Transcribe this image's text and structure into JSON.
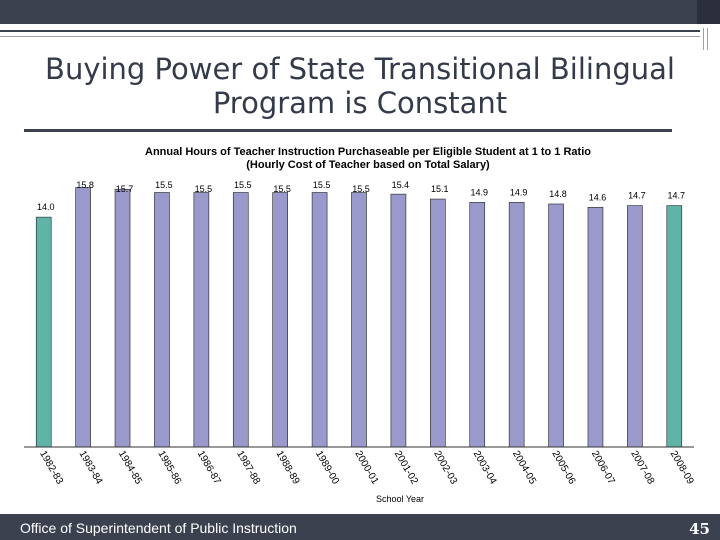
{
  "slide": {
    "title": "Buying Power of State Transitional Bilingual Program is Constant",
    "footer": "Office of Superintendent of Public Instruction",
    "page_number": "45"
  },
  "colors": {
    "first_bar": "#5fb3a7",
    "bars": "#9999cc",
    "last_bar": "#5fb3a7",
    "dark": "#3c4150"
  },
  "chart_data": {
    "type": "bar",
    "title": "Annual Hours of  Teacher Instruction Purchaseable per Eligible Student at 1 to 1 Ratio",
    "subtitle": "(Hourly Cost of Teacher based on Total Salary)",
    "xlabel": "School Year",
    "ylabel": "",
    "categories": [
      "1982-83",
      "1983-84",
      "1984-85",
      "1985-86",
      "1986-87",
      "1987-88",
      "1988-89",
      "1989-00",
      "2000-01",
      "2001-02",
      "2002-03",
      "2003-04",
      "2004-05",
      "2005-06",
      "2006-07",
      "2007-08",
      "2008-09"
    ],
    "values": [
      14.0,
      15.8,
      15.7,
      15.5,
      15.5,
      15.5,
      15.5,
      15.5,
      15.5,
      15.4,
      15.1,
      14.9,
      14.9,
      14.8,
      14.6,
      14.7,
      14.7
    ],
    "value_labels": [
      "14.0",
      "15.8",
      "15.7",
      "15.5",
      "15.5",
      "15.5",
      "15.5",
      "15.5",
      "15.5",
      "15.4",
      "15.1",
      "14.9",
      "14.9",
      "14.8",
      "14.6",
      "14.7",
      "14.7"
    ],
    "ylim": [
      0,
      16.2
    ],
    "grid": false,
    "legend": "none"
  }
}
